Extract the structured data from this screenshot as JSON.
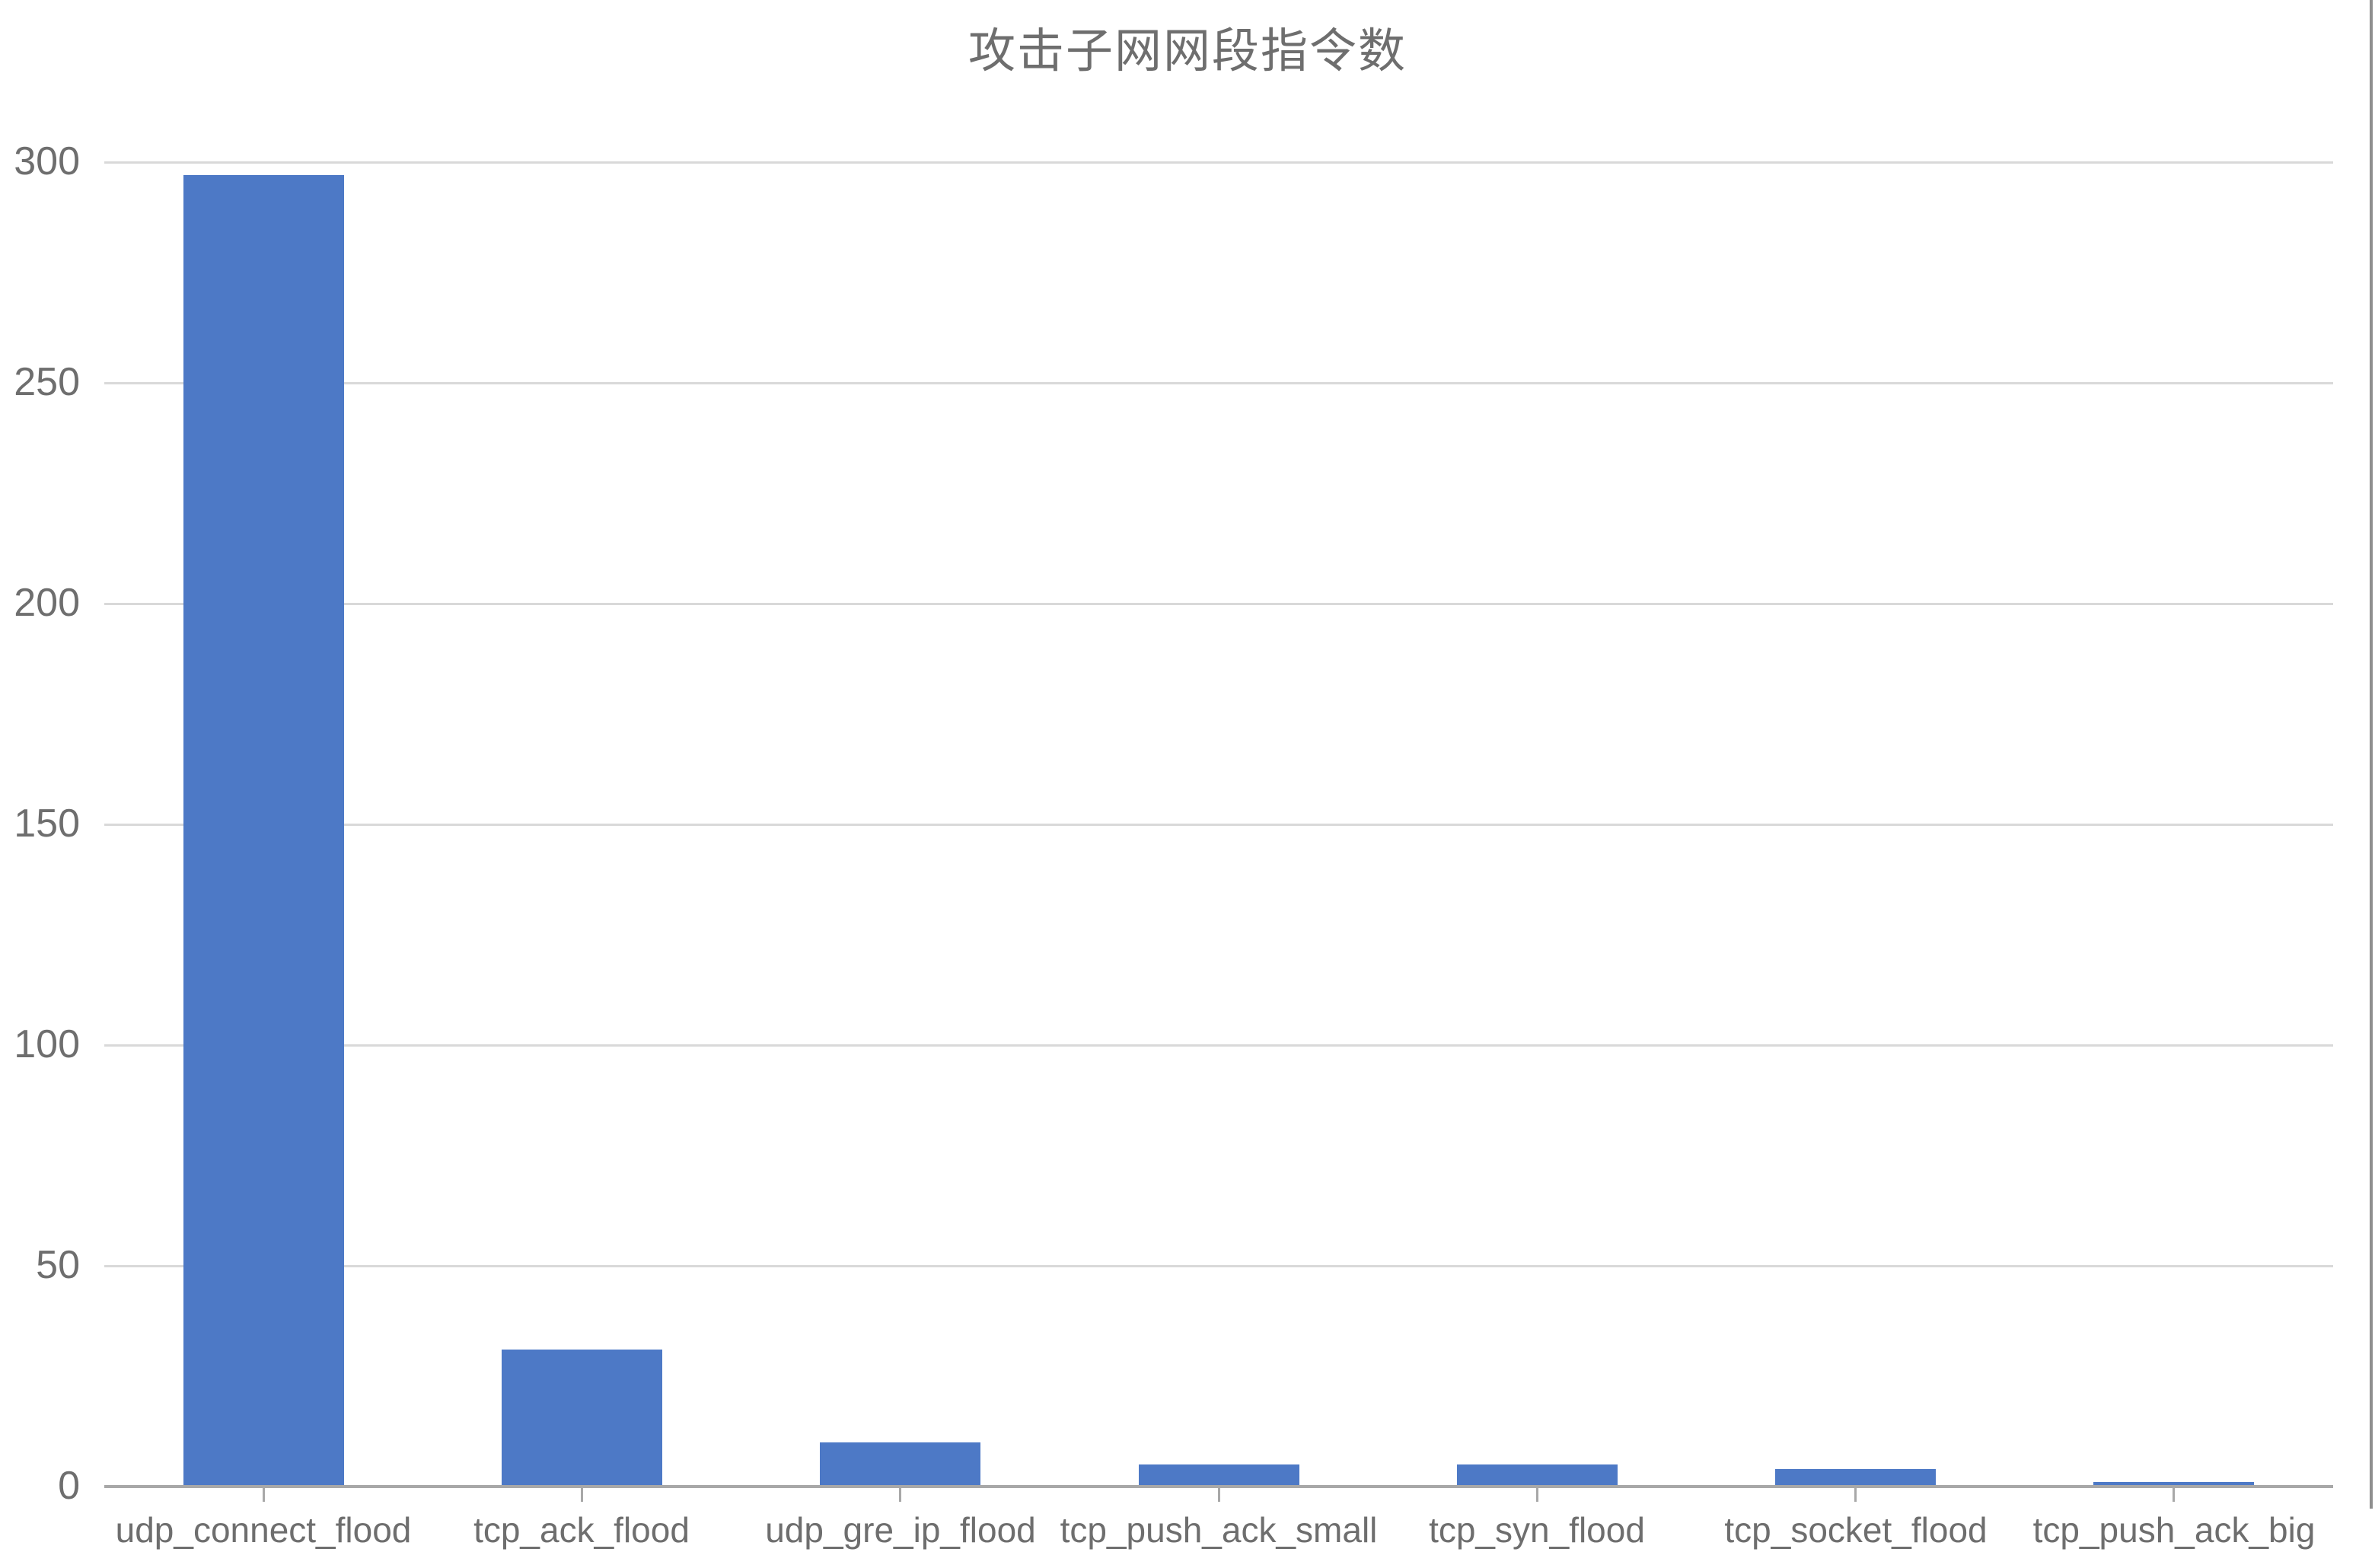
{
  "chart_data": {
    "type": "bar",
    "title": "攻击子网网段指令数",
    "categories": [
      "udp_connect_flood",
      "tcp_ack_flood",
      "udp_gre_ip_flood",
      "tcp_push_ack_small",
      "tcp_syn_flood",
      "tcp_socket_flood",
      "tcp_push_ack_big"
    ],
    "values": [
      297,
      31,
      10,
      5,
      5,
      4,
      1
    ],
    "xlabel": "",
    "ylabel": "",
    "ylim": [
      0,
      300
    ],
    "yticks": [
      0,
      50,
      100,
      150,
      200,
      250,
      300
    ],
    "grid": true,
    "legend_position": "none",
    "colors": {
      "bar": "#4d79c6",
      "gridline": "#d9d9d9",
      "axis_line": "#a8a8a8",
      "label_text": "#6e6e6e",
      "title_text": "#6e6e6e",
      "background": "#ffffff"
    }
  }
}
